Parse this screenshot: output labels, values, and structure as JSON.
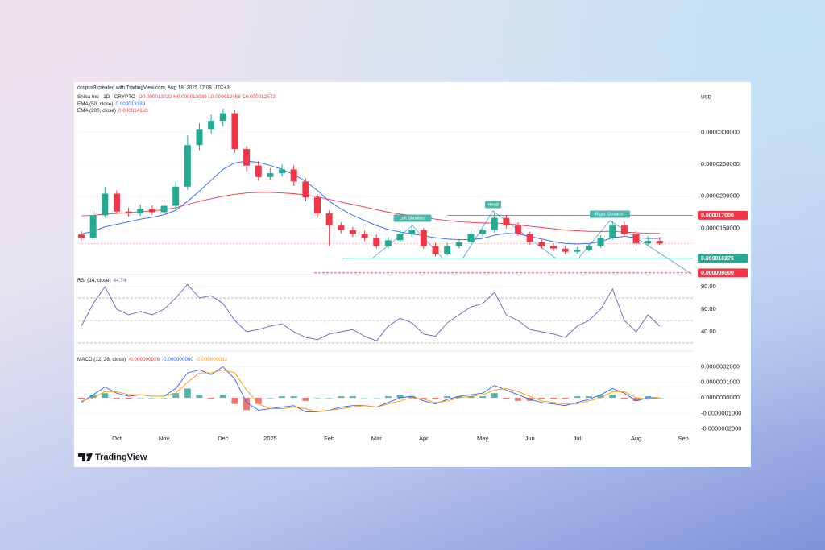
{
  "brand": "TradingView",
  "chart_data": [
    {
      "type": "candlestick",
      "attribution": "crispus9 created with TradingView.com, Aug 18, 2025 17:08 UTC+3",
      "title": "Shiba Inu · 1D · CRYPTO",
      "ohlc_text": "O0.000013022 H0.000013039 L0.000012458 C0.000012572",
      "currency": "USD",
      "up_color": "#22ab94",
      "down_color": "#f23645",
      "categories": [
        null,
        null,
        null,
        "Oct",
        null,
        null,
        null,
        "Nov",
        null,
        null,
        null,
        null,
        "Dec",
        null,
        null,
        null,
        "2025",
        null,
        null,
        null,
        null,
        "Feb",
        null,
        null,
        null,
        "Mar",
        null,
        null,
        null,
        "Apr",
        null,
        null,
        null,
        null,
        "May",
        null,
        null,
        null,
        "Jun",
        null,
        null,
        null,
        "Jul",
        null,
        null,
        null,
        null,
        "Aug",
        null,
        null,
        null,
        "Sep"
      ],
      "open": [
        1.4e-05,
        1.35e-05,
        1.7e-05,
        2.04e-05,
        1.76e-05,
        1.73e-05,
        1.8e-05,
        1.75e-05,
        1.85e-05,
        2.15e-05,
        2.8e-05,
        3.05e-05,
        3.18e-05,
        3.3e-05,
        2.74e-05,
        2.48e-05,
        2.3e-05,
        2.36e-05,
        2.42e-05,
        2.23e-05,
        1.98e-05,
        1.73e-05,
        1.54e-05,
        1.47e-05,
        1.41e-05,
        1.35e-05,
        1.22e-05,
        1.31e-05,
        1.41e-05,
        1.47e-05,
        1.22e-05,
        1.1e-05,
        1.22e-05,
        1.28e-05,
        1.41e-05,
        1.47e-05,
        1.66e-05,
        1.54e-05,
        1.41e-05,
        1.28e-05,
        1.22e-05,
        1.18e-05,
        1.13e-05,
        1.16e-05,
        1.22e-05,
        1.35e-05,
        1.54e-05,
        1.41e-05,
        1.26e-05,
        1.3e-05,
        null,
        null
      ],
      "high": [
        1.45e-05,
        1.78e-05,
        2.15e-05,
        2.09e-05,
        1.82e-05,
        1.87e-05,
        1.86e-05,
        1.92e-05,
        2.23e-05,
        2.95e-05,
        3.14e-05,
        3.28e-05,
        3.37e-05,
        3.36e-05,
        2.79e-05,
        2.55e-05,
        2.44e-05,
        2.5e-05,
        2.48e-05,
        2.28e-05,
        2.03e-05,
        1.78e-05,
        1.59e-05,
        1.52e-05,
        1.46e-05,
        1.4e-05,
        1.36e-05,
        1.48e-05,
        1.56e-05,
        1.5e-05,
        1.27e-05,
        1.27e-05,
        1.33e-05,
        1.46e-05,
        1.53e-05,
        1.74e-05,
        1.7e-05,
        1.59e-05,
        1.45e-05,
        1.32e-05,
        1.26e-05,
        1.22e-05,
        1.2e-05,
        1.26e-05,
        1.39e-05,
        1.61e-05,
        1.6e-05,
        1.45e-05,
        1.38e-05,
        1.36e-05,
        null,
        null
      ],
      "low": [
        1.3e-05,
        1.31e-05,
        1.66e-05,
        1.72e-05,
        1.68e-05,
        1.69e-05,
        1.71e-05,
        1.71e-05,
        1.8e-05,
        2.1e-05,
        2.72e-05,
        2.98e-05,
        3.09e-05,
        2.68e-05,
        2.39e-05,
        2.24e-05,
        2.26e-05,
        2.31e-05,
        2.16e-05,
        1.92e-05,
        1.66e-05,
        1.22e-05,
        1.42e-05,
        1.36e-05,
        1.3e-05,
        1.18e-05,
        1.18e-05,
        1.28e-05,
        1.36e-05,
        1.18e-05,
        1.06e-05,
        1.07e-05,
        1.18e-05,
        1.25e-05,
        1.36e-05,
        1.43e-05,
        1.5e-05,
        1.38e-05,
        1.24e-05,
        1.18e-05,
        1.14e-05,
        1.09e-05,
        1.1e-05,
        1.13e-05,
        1.19e-05,
        1.32e-05,
        1.38e-05,
        1.22e-05,
        1.22e-05,
        1.24e-05,
        null,
        null
      ],
      "close": [
        1.35e-05,
        1.7e-05,
        2.04e-05,
        1.76e-05,
        1.73e-05,
        1.8e-05,
        1.75e-05,
        1.85e-05,
        2.15e-05,
        2.8e-05,
        3.05e-05,
        3.18e-05,
        3.3e-05,
        2.74e-05,
        2.48e-05,
        2.3e-05,
        2.36e-05,
        2.42e-05,
        2.23e-05,
        1.98e-05,
        1.73e-05,
        1.54e-05,
        1.47e-05,
        1.41e-05,
        1.35e-05,
        1.22e-05,
        1.31e-05,
        1.41e-05,
        1.47e-05,
        1.22e-05,
        1.1e-05,
        1.22e-05,
        1.28e-05,
        1.41e-05,
        1.47e-05,
        1.66e-05,
        1.54e-05,
        1.41e-05,
        1.28e-05,
        1.22e-05,
        1.18e-05,
        1.13e-05,
        1.16e-05,
        1.22e-05,
        1.35e-05,
        1.54e-05,
        1.41e-05,
        1.26e-05,
        1.3e-05,
        1.26e-05,
        null,
        null
      ],
      "overlays": [
        {
          "name": "EMA (50, close)",
          "value_label": "0.000013389",
          "color": "#2962ff",
          "values": [
            1.41e-05,
            1.45e-05,
            1.52e-05,
            1.56e-05,
            1.6e-05,
            1.64e-05,
            1.67e-05,
            1.71e-05,
            1.78e-05,
            1.92e-05,
            2.08e-05,
            2.25e-05,
            2.42e-05,
            2.52e-05,
            2.55e-05,
            2.53e-05,
            2.48e-05,
            2.42e-05,
            2.34e-05,
            2.23e-05,
            2.09e-05,
            1.92e-05,
            1.8e-05,
            1.7e-05,
            1.62e-05,
            1.54e-05,
            1.48e-05,
            1.44e-05,
            1.41e-05,
            1.38e-05,
            1.35e-05,
            1.33e-05,
            1.32e-05,
            1.32e-05,
            1.34e-05,
            1.39e-05,
            1.42e-05,
            1.41e-05,
            1.37e-05,
            1.33e-05,
            1.29e-05,
            1.26e-05,
            1.25e-05,
            1.26e-05,
            1.29e-05,
            1.35e-05,
            1.37e-05,
            1.35e-05,
            1.34e-05,
            1.34e-05,
            null,
            null
          ]
        },
        {
          "name": "EMA (200, close)",
          "value_label": "0.000014150",
          "color": "#f23645",
          "values": [
            1.69e-05,
            1.7e-05,
            1.72e-05,
            1.73e-05,
            1.74e-05,
            1.76e-05,
            1.77e-05,
            1.79e-05,
            1.82e-05,
            1.87e-05,
            1.92e-05,
            1.96e-05,
            2e-05,
            2.03e-05,
            2.05e-05,
            2.06e-05,
            2.06e-05,
            2.05e-05,
            2.04e-05,
            2.02e-05,
            1.99e-05,
            1.95e-05,
            1.91e-05,
            1.87e-05,
            1.83e-05,
            1.79e-05,
            1.75e-05,
            1.72e-05,
            1.7e-05,
            1.67e-05,
            1.64e-05,
            1.62e-05,
            1.6e-05,
            1.59e-05,
            1.58e-05,
            1.58e-05,
            1.57e-05,
            1.55e-05,
            1.53e-05,
            1.51e-05,
            1.49e-05,
            1.47e-05,
            1.46e-05,
            1.45e-05,
            1.45e-05,
            1.45e-05,
            1.44e-05,
            1.43e-05,
            1.42e-05,
            1.42e-05,
            null,
            null
          ]
        }
      ],
      "levels": [
        {
          "value": 1.7006e-05,
          "label": "0.000017006",
          "color": "#f23645"
        },
        {
          "value": 1.0276e-05,
          "label": "0.000010276",
          "color": "#22ab94"
        },
        {
          "value": 8e-06,
          "label": "0.000008000",
          "color": "#f23645"
        }
      ],
      "annotations": [
        "Left Shoulder",
        "Head",
        "Right Shoulder"
      ],
      "ylim": [
        7.6e-06,
        3.66e-05
      ],
      "yticks": [
        {
          "value": 1.5e-05,
          "label": "0.0000150000"
        },
        {
          "value": 2e-05,
          "label": "0.0000200000"
        },
        {
          "value": 2.5e-05,
          "label": "0.0000250000"
        },
        {
          "value": 3e-05,
          "label": "0.0000300000"
        }
      ]
    },
    {
      "type": "line",
      "title": "RSI (14, close)",
      "value_label": "44.74",
      "color": "#7e57c2",
      "values": [
        45,
        65,
        80,
        60,
        55,
        58,
        55,
        60,
        70,
        82,
        70,
        72,
        65,
        50,
        40,
        42,
        45,
        47,
        40,
        35,
        33,
        38,
        40,
        42,
        36,
        32,
        45,
        52,
        48,
        38,
        36,
        48,
        55,
        62,
        65,
        75,
        55,
        50,
        42,
        40,
        38,
        35,
        45,
        50,
        60,
        78,
        50,
        40,
        55,
        45,
        null,
        null
      ],
      "bands": [
        30,
        50,
        70
      ],
      "ylim": [
        25.7,
        87.9
      ],
      "yticks": [
        {
          "value": 40,
          "label": "40.00"
        },
        {
          "value": 60,
          "label": "60.00"
        },
        {
          "value": 80,
          "label": "80.00"
        }
      ]
    },
    {
      "type": "macd",
      "title": "MACD (12, 26, close)",
      "legend_values": [
        {
          "text": "-0.000000026",
          "color": "#f23645"
        },
        {
          "text": "-0.000000060",
          "color": "#2962ff"
        },
        {
          "text": "-0.000000033",
          "color": "#ff9800"
        }
      ],
      "up_color": "#26a69a",
      "down_color": "#ef5350",
      "histogram": [
        -1e-08,
        2e-08,
        3e-08,
        -1e-08,
        -1e-08,
        0,
        0,
        0,
        3e-08,
        6e-08,
        2e-08,
        -1e-08,
        2e-08,
        -4e-08,
        -8e-08,
        -4e-08,
        0,
        1e-08,
        1e-08,
        -2e-08,
        0,
        0,
        1e-08,
        1e-08,
        0,
        0,
        1e-08,
        2e-08,
        1e-08,
        -1e-08,
        -1e-08,
        1e-08,
        1e-08,
        1e-08,
        1e-08,
        3e-08,
        -1e-08,
        -2e-08,
        -2e-08,
        -1e-08,
        -1e-08,
        -1e-08,
        1e-08,
        1e-08,
        2e-08,
        2e-08,
        -1e-08,
        -2e-08,
        1e-08,
        0,
        null,
        null
      ],
      "macd": {
        "color": "#2962ff",
        "values": [
          -3e-08,
          2e-08,
          7e-08,
          3e-08,
          1e-08,
          2e-08,
          1e-08,
          1e-08,
          6e-08,
          1.6e-07,
          1.8e-07,
          1.5e-07,
          2e-07,
          1.2e-07,
          -3e-08,
          -8e-08,
          -7e-08,
          -6e-08,
          -5e-08,
          -9e-08,
          -9e-08,
          -8e-08,
          -6e-08,
          -5e-08,
          -5e-08,
          -6e-08,
          -3e-08,
          0,
          1e-08,
          -2e-08,
          -4e-08,
          -1e-08,
          1e-08,
          2e-08,
          3e-08,
          8e-08,
          5e-08,
          2e-08,
          -1e-08,
          -3e-08,
          -4e-08,
          -5e-08,
          -3e-08,
          -1e-08,
          2e-08,
          6e-08,
          3e-08,
          -2e-08,
          0,
          0,
          null,
          null
        ]
      },
      "signal": {
        "color": "#ff9800",
        "values": [
          -2e-08,
          0,
          4e-08,
          4e-08,
          2e-08,
          2e-08,
          1e-08,
          1e-08,
          3e-08,
          1e-07,
          1.6e-07,
          1.6e-07,
          1.8e-07,
          1.6e-07,
          5e-08,
          -4e-08,
          -7e-08,
          -7e-08,
          -6e-08,
          -7e-08,
          -9e-08,
          -8e-08,
          -7e-08,
          -6e-08,
          -5e-08,
          -6e-08,
          -4e-08,
          -2e-08,
          0,
          -1e-08,
          -3e-08,
          -2e-08,
          0,
          1e-08,
          2e-08,
          5e-08,
          6e-08,
          4e-08,
          1e-08,
          -2e-08,
          -3e-08,
          -4e-08,
          -4e-08,
          -2e-08,
          0,
          4e-08,
          4e-08,
          0,
          -1e-08,
          0,
          null,
          null
        ]
      },
      "ylim": [
        -2.28e-07,
        2.8e-07
      ],
      "yticks": [
        {
          "value": -2e-07,
          "label": "-0.0000002000"
        },
        {
          "value": -1e-07,
          "label": "-0.0000001000"
        },
        {
          "value": 0,
          "label": "0.0000000000"
        },
        {
          "value": 1e-07,
          "label": "0.0000001000"
        },
        {
          "value": 2e-07,
          "label": "0.0000002000"
        }
      ]
    }
  ]
}
